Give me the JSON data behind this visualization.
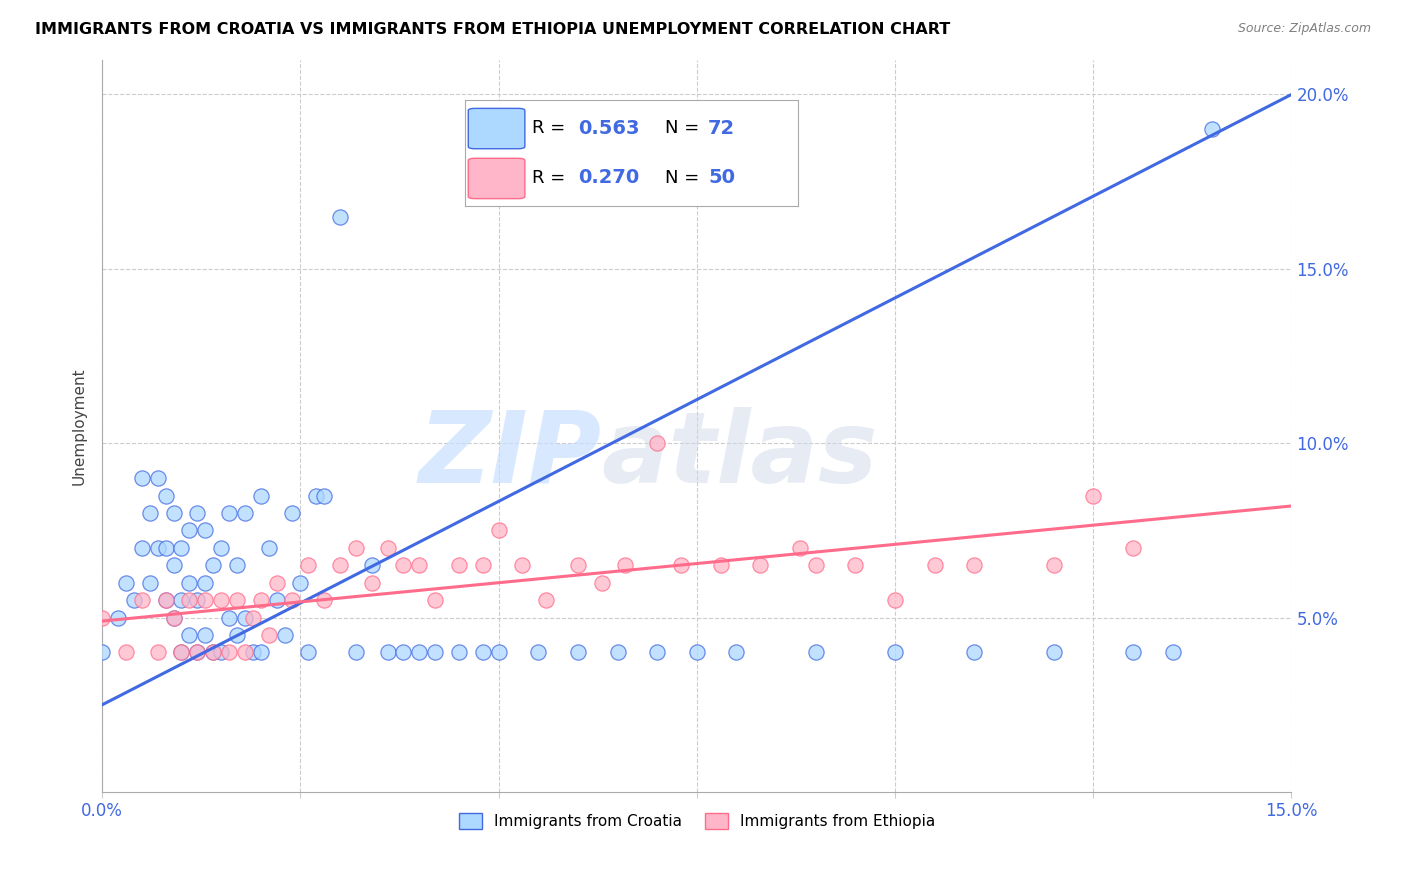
{
  "title": "IMMIGRANTS FROM CROATIA VS IMMIGRANTS FROM ETHIOPIA UNEMPLOYMENT CORRELATION CHART",
  "source": "Source: ZipAtlas.com",
  "ylabel": "Unemployment",
  "xlim": [
    0.0,
    0.15
  ],
  "ylim": [
    0.0,
    0.21
  ],
  "xticks": [
    0.0,
    0.025,
    0.05,
    0.075,
    0.1,
    0.125,
    0.15
  ],
  "yticks": [
    0.05,
    0.1,
    0.15,
    0.2
  ],
  "croatia_R": 0.563,
  "croatia_N": 72,
  "ethiopia_R": 0.27,
  "ethiopia_N": 50,
  "croatia_color": "#ADD8FF",
  "ethiopia_color": "#FFB6C8",
  "croatia_line_color": "#4169E1",
  "ethiopia_line_color": "#FF6B8A",
  "background_color": "#FFFFFF",
  "grid_color": "#CCCCCC",
  "watermark_zip": "ZIP",
  "watermark_atlas": "atlas",
  "legend_label_croatia": "Immigrants from Croatia",
  "legend_label_ethiopia": "Immigrants from Ethiopia",
  "croatia_scatter_x": [
    0.0,
    0.002,
    0.003,
    0.004,
    0.005,
    0.005,
    0.006,
    0.006,
    0.007,
    0.007,
    0.008,
    0.008,
    0.008,
    0.009,
    0.009,
    0.009,
    0.01,
    0.01,
    0.01,
    0.011,
    0.011,
    0.011,
    0.012,
    0.012,
    0.012,
    0.013,
    0.013,
    0.013,
    0.014,
    0.014,
    0.015,
    0.015,
    0.016,
    0.016,
    0.017,
    0.017,
    0.018,
    0.018,
    0.019,
    0.02,
    0.02,
    0.021,
    0.022,
    0.023,
    0.024,
    0.025,
    0.026,
    0.027,
    0.028,
    0.03,
    0.032,
    0.034,
    0.036,
    0.038,
    0.04,
    0.042,
    0.045,
    0.048,
    0.05,
    0.055,
    0.06,
    0.065,
    0.07,
    0.075,
    0.08,
    0.09,
    0.1,
    0.11,
    0.12,
    0.13,
    0.135,
    0.14
  ],
  "croatia_scatter_y": [
    0.04,
    0.05,
    0.06,
    0.055,
    0.07,
    0.09,
    0.06,
    0.08,
    0.07,
    0.09,
    0.055,
    0.07,
    0.085,
    0.05,
    0.065,
    0.08,
    0.04,
    0.055,
    0.07,
    0.045,
    0.06,
    0.075,
    0.04,
    0.055,
    0.08,
    0.045,
    0.06,
    0.075,
    0.04,
    0.065,
    0.04,
    0.07,
    0.05,
    0.08,
    0.045,
    0.065,
    0.05,
    0.08,
    0.04,
    0.04,
    0.085,
    0.07,
    0.055,
    0.045,
    0.08,
    0.06,
    0.04,
    0.085,
    0.085,
    0.165,
    0.04,
    0.065,
    0.04,
    0.04,
    0.04,
    0.04,
    0.04,
    0.04,
    0.04,
    0.04,
    0.04,
    0.04,
    0.04,
    0.04,
    0.04,
    0.04,
    0.04,
    0.04,
    0.04,
    0.04,
    0.04,
    0.19
  ],
  "ethiopia_scatter_x": [
    0.0,
    0.003,
    0.005,
    0.007,
    0.008,
    0.009,
    0.01,
    0.011,
    0.012,
    0.013,
    0.014,
    0.015,
    0.016,
    0.017,
    0.018,
    0.019,
    0.02,
    0.021,
    0.022,
    0.024,
    0.026,
    0.028,
    0.03,
    0.032,
    0.034,
    0.036,
    0.038,
    0.04,
    0.042,
    0.045,
    0.048,
    0.05,
    0.053,
    0.056,
    0.06,
    0.063,
    0.066,
    0.07,
    0.073,
    0.078,
    0.083,
    0.088,
    0.09,
    0.095,
    0.1,
    0.105,
    0.11,
    0.12,
    0.125,
    0.13
  ],
  "ethiopia_scatter_y": [
    0.05,
    0.04,
    0.055,
    0.04,
    0.055,
    0.05,
    0.04,
    0.055,
    0.04,
    0.055,
    0.04,
    0.055,
    0.04,
    0.055,
    0.04,
    0.05,
    0.055,
    0.045,
    0.06,
    0.055,
    0.065,
    0.055,
    0.065,
    0.07,
    0.06,
    0.07,
    0.065,
    0.065,
    0.055,
    0.065,
    0.065,
    0.075,
    0.065,
    0.055,
    0.065,
    0.06,
    0.065,
    0.1,
    0.065,
    0.065,
    0.065,
    0.07,
    0.065,
    0.065,
    0.055,
    0.065,
    0.065,
    0.065,
    0.085,
    0.07
  ],
  "croatia_line_x0": 0.0,
  "croatia_line_y0": 0.025,
  "croatia_line_x1": 0.15,
  "croatia_line_y1": 0.2,
  "ethiopia_line_x0": 0.0,
  "ethiopia_line_y0": 0.049,
  "ethiopia_line_x1": 0.15,
  "ethiopia_line_y1": 0.082
}
